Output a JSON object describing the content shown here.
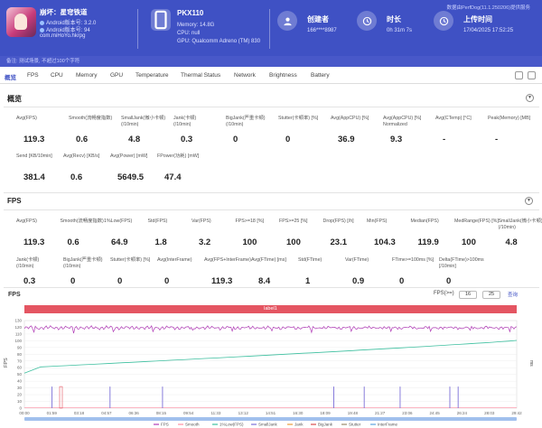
{
  "header": {
    "app_name": "崩坏：星穹铁道",
    "android_version": "Android版本号: 3.2.0",
    "android_build": "Android版本号: 94",
    "package": "com.miHoYo.hkrpg",
    "device_name": "PKX110",
    "memory": "Memory: 14.8G",
    "cpu": "CPU: null",
    "gpu": "GPU: Qualcomm Adreno (TM) 830",
    "creator_label": "创建者",
    "creator_value": "166****8987",
    "duration_label": "时长",
    "duration_value": "0h 31m 7s",
    "upload_label": "上传时间",
    "upload_value": "17/04/2025 17:52:25",
    "version_note": "数据由PerfDog(11.1.250206)提供服务"
  },
  "note_bar": {
    "text": "备注: 测试场景, 不超过100个字符"
  },
  "tabs": [
    "概览",
    "FPS",
    "CPU",
    "Memory",
    "GPU",
    "Temperature",
    "Thermal Status",
    "Network",
    "Brightness",
    "Battery"
  ],
  "overview": {
    "title": "概览",
    "row1": [
      {
        "label": "Avg(FPS)",
        "value": "119.3"
      },
      {
        "label": "Smooth(流畅度指数)",
        "value": "0.6"
      },
      {
        "label": "SmallJank(微小卡顿)\n(/10min)",
        "value": "4.8"
      },
      {
        "label": "Jank(卡顿)\n(/10min)",
        "value": "0.3"
      },
      {
        "label": "BigJank(严重卡顿)\n(/10min)",
        "value": "0"
      },
      {
        "label": "Stutter(卡顿率) [%]",
        "value": "0"
      },
      {
        "label": "Avg(AppCPU) [%]",
        "value": "36.9"
      },
      {
        "label": "Avg(AppCPU) [%]\nNormalized",
        "value": "9.3"
      },
      {
        "label": "Avg(CTemp) [°C]",
        "value": "-"
      },
      {
        "label": "Peak(Memory) [MB]",
        "value": "-"
      }
    ],
    "row2": [
      {
        "label": "Send [KB/10min]",
        "value": "381.4"
      },
      {
        "label": "Avg(Recv) [KB/s]",
        "value": "0.6"
      },
      {
        "label": "Avg(Power) [mW]",
        "value": "5649.5"
      },
      {
        "label": "FPower(功耗) [mW]",
        "value": "47.4"
      }
    ]
  },
  "fps_section": {
    "title": "FPS",
    "row1": [
      {
        "label": "Avg(FPS)",
        "value": "119.3"
      },
      {
        "label": "Smooth(流畅度指数)",
        "value": "0.6"
      },
      {
        "label": "1%Low(FPS)",
        "value": "64.9"
      },
      {
        "label": "Std(FPS)",
        "value": "1.8"
      },
      {
        "label": "Var(FPS)",
        "value": "3.2"
      },
      {
        "label": "FPS>=18 [%]",
        "value": "100"
      },
      {
        "label": "FPS>=25 [%]",
        "value": "100"
      },
      {
        "label": "Drop(FPS) [/h]",
        "value": "23.1"
      },
      {
        "label": "Min(FPS)",
        "value": "104.3"
      },
      {
        "label": "Median(FPS)",
        "value": "119.9"
      },
      {
        "label": "MedRange(FPS) [%]",
        "value": "100"
      },
      {
        "label": "SmallJank(微小卡顿)\n(/10min)",
        "value": "4.8"
      }
    ],
    "row2": [
      {
        "label": "Jank(卡顿)\n(/10min)",
        "value": "0.3"
      },
      {
        "label": "BigJank(严重卡顿)\n(/10min)",
        "value": "0"
      },
      {
        "label": "Stutter(卡顿率) [%]",
        "value": "0"
      },
      {
        "label": "Avg(InterFrame)",
        "value": "0"
      },
      {
        "label": "Avg(FPS+InterFrame)",
        "value": "119.3"
      },
      {
        "label": "Avg(FTime) [ms]",
        "value": "8.4"
      },
      {
        "label": "Std(FTime)",
        "value": "1"
      },
      {
        "label": "Var(FTime)",
        "value": "0.9"
      },
      {
        "label": "FTime>=100ms [%]",
        "value": "0"
      },
      {
        "label": "Delta(FTime)>100ms [/10min]",
        "value": "0"
      }
    ]
  },
  "fps_chart_controls": {
    "title": "FPS",
    "threshold_label": "FPS(>=)",
    "threshold_a": "16",
    "threshold_b": "25",
    "apply": "查询",
    "label_bar": "label1"
  },
  "chart_data": {
    "type": "line",
    "ylabel": "FPS",
    "y2label": "ms",
    "ylim": [
      0,
      130
    ],
    "y_ticks": [
      "0",
      "10",
      "20",
      "30",
      "40",
      "50",
      "60",
      "70",
      "80",
      "90",
      "100",
      "110",
      "120",
      "130"
    ],
    "x_ticks": [
      "00:00",
      "01:59",
      "03:18",
      "04:57",
      "06:36",
      "08:15",
      "09:54",
      "11:33",
      "13:12",
      "14:51",
      "16:30",
      "18:09",
      "19:48",
      "21:27",
      "23:06",
      "24:45",
      "26:24",
      "28:03",
      "29:42"
    ],
    "series": [
      {
        "name": "FPS",
        "color": "#b03bb6",
        "approx_value": 119.3
      },
      {
        "name": "Smooth",
        "color": "#ff8fa3",
        "approx_value": 0.6
      },
      {
        "name": "1%Low(FPS)",
        "color": "#3dbf9f",
        "approx_value": 64.9
      },
      {
        "name": "SmallJank",
        "color": "#7b6fd8"
      },
      {
        "name": "Jank",
        "color": "#e89c3c"
      },
      {
        "name": "BigJank",
        "color": "#d94d4d"
      },
      {
        "name": "Stutter",
        "color": "#9a8a6a"
      },
      {
        "name": "InterFrame",
        "color": "#5da3e0"
      }
    ],
    "smalljank_times": [
      "01:40",
      "05:10",
      "08:20",
      "18:40",
      "20:30",
      "22:40",
      "25:40",
      "26:10"
    ],
    "low_fps_start": 60,
    "low_fps_end": 105,
    "legend_position": "bottom"
  },
  "icons": {
    "device": "phone-icon",
    "creator": "user-icon",
    "duration": "clock-icon",
    "upload": "upload-clock-icon"
  }
}
